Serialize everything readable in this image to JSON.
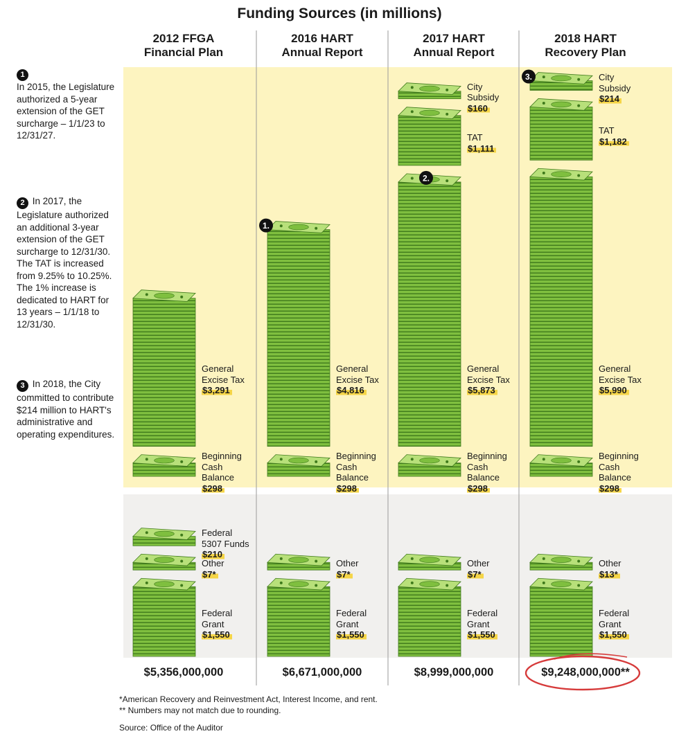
{
  "chart_data": {
    "type": "bar",
    "title": "Funding Sources (in millions)",
    "categories": [
      "2012 FFGA Financial Plan",
      "2016 HART Annual Report",
      "2017 HART Annual Report",
      "2018 HART Recovery Plan"
    ],
    "category_lines": [
      [
        "2012 FFGA",
        "Financial Plan"
      ],
      [
        "2016 HART",
        "Annual Report"
      ],
      [
        "2017 HART",
        "Annual Report"
      ],
      [
        "2018 HART",
        "Recovery Plan"
      ]
    ],
    "series": [
      {
        "name": "Federal Grant",
        "lines": [
          "Federal",
          "Grant"
        ],
        "values": [
          1550,
          1550,
          1550,
          1550
        ],
        "labels": [
          "$1,550",
          "$1,550",
          "$1,550",
          "$1,550"
        ]
      },
      {
        "name": "Other",
        "lines": [
          "Other"
        ],
        "values": [
          7,
          7,
          7,
          13
        ],
        "labels": [
          "$7*",
          "$7*",
          "$7*",
          "$13*"
        ]
      },
      {
        "name": "Federal 5307 Funds",
        "lines": [
          "Federal",
          "5307 Funds"
        ],
        "values": [
          210,
          0,
          0,
          0
        ],
        "labels": [
          "$210",
          "",
          "",
          ""
        ]
      },
      {
        "name": "Beginning Cash Balance",
        "lines": [
          "Beginning",
          "Cash",
          "Balance"
        ],
        "values": [
          298,
          298,
          298,
          298
        ],
        "labels": [
          "$298",
          "$298",
          "$298",
          "$298"
        ]
      },
      {
        "name": "General Excise Tax",
        "lines": [
          "General",
          "Excise Tax"
        ],
        "values": [
          3291,
          4816,
          5873,
          5990
        ],
        "labels": [
          "$3,291",
          "$4,816",
          "$5,873",
          "$5,990"
        ]
      },
      {
        "name": "TAT",
        "lines": [
          "TAT"
        ],
        "values": [
          0,
          0,
          1111,
          1182
        ],
        "labels": [
          "",
          "",
          "$1,111",
          "$1,182"
        ]
      },
      {
        "name": "City Subsidy",
        "lines": [
          "City",
          "Subsidy"
        ],
        "values": [
          0,
          0,
          160,
          214
        ],
        "labels": [
          "",
          "",
          "$160",
          "$214"
        ]
      }
    ],
    "totals": [
      "$5,356,000,000",
      "$6,671,000,000",
      "$8,999,000,000",
      "$9,248,000,000**"
    ],
    "markers": [
      {
        "text": "1.",
        "column": 1,
        "series": "General Excise Tax"
      },
      {
        "text": "2.",
        "column": 2,
        "series": "General Excise Tax"
      },
      {
        "text": "3.",
        "column": 3,
        "series": "City Subsidy"
      }
    ],
    "colors": {
      "money": "#7fbf3f",
      "money_dark": "#3f7a1c",
      "money_light": "#b8e07a",
      "upper_band": "#fdf4c0",
      "lower_band": "#f1f0ee",
      "highlight": "#f5d547",
      "circle": "#d63a3a"
    }
  },
  "notes": [
    {
      "marker": "1",
      "text": "In 2015, the Legislature authorized a 5-year extension of the GET surcharge – 1/1/23 to 12/31/27."
    },
    {
      "marker": "2",
      "text": "In 2017, the Legislature authorized an additional 3-year extension of the GET surcharge to 12/31/30. The TAT is increased from 9.25% to 10.25%. The 1% increase is dedicated to HART for 13 years – 1/1/18 to 12/31/30."
    },
    {
      "marker": "3",
      "text": "In 2018, the City committed to contribute $214 million to HART's administrative and operating expenditures."
    }
  ],
  "footnotes": [
    "*American Recovery and Reinvestment Act, Interest Income, and rent.",
    "** Numbers may not match due to rounding.",
    "Source: Office of the Auditor"
  ]
}
